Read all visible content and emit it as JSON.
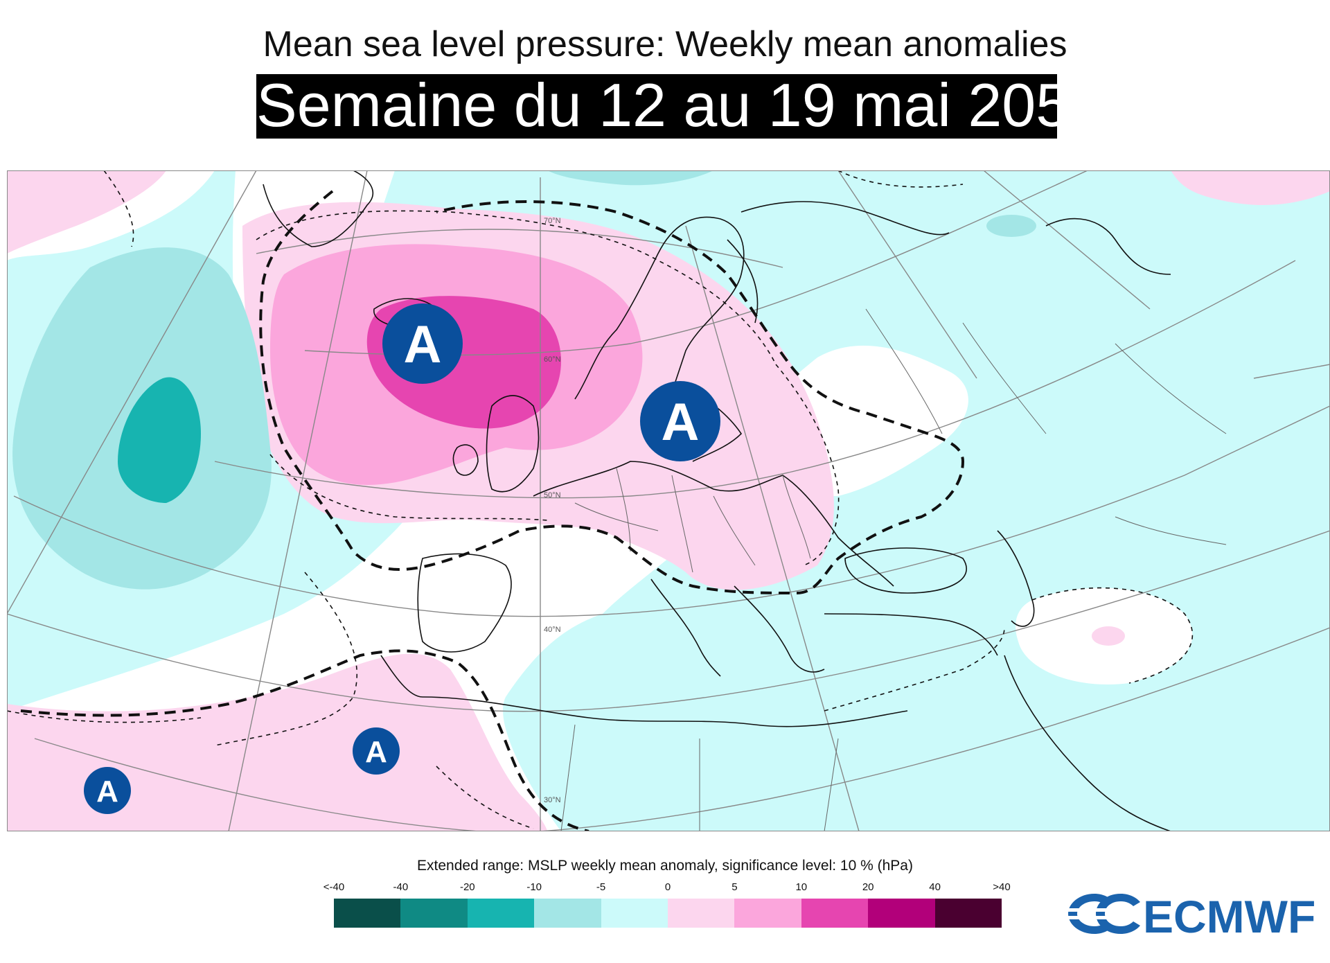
{
  "header": {
    "title": "Mean sea level pressure: Weekly mean anomalies",
    "subtitle": "Semaine du 12 au 19 mai 205"
  },
  "map": {
    "region": "Europe / North Atlantic",
    "background_color": "#c9fafa",
    "pressure_markers": [
      {
        "label": "A",
        "place": "North Atlantic west of Scotland"
      },
      {
        "label": "A",
        "place": "Poland / Baltic"
      },
      {
        "label": "A",
        "place": "Canary Islands"
      },
      {
        "label": "A",
        "place": "Subtropical Atlantic"
      }
    ],
    "latitude_labels": [
      "70°N",
      "60°N",
      "50°N",
      "40°N",
      "30°N"
    ],
    "marker_color": "#0a4f9c"
  },
  "legend": {
    "title": "Extended range: MSLP weekly mean anomaly, significance level: 10 % (hPa)",
    "ticks": [
      "<-40",
      "-40",
      "-20",
      "-10",
      "-5",
      "0",
      "5",
      "10",
      "20",
      "40",
      ">40"
    ],
    "colors": [
      "#0a4f4a",
      "#0f8a84",
      "#17b4b0",
      "#a3e6e6",
      "#ccfafa",
      "#fcd6ee",
      "#fba6dc",
      "#e645b0",
      "#b2007a",
      "#4a0030"
    ]
  },
  "branding": {
    "logo_text": "ECMWF",
    "logo_color": "#1b63ad"
  }
}
